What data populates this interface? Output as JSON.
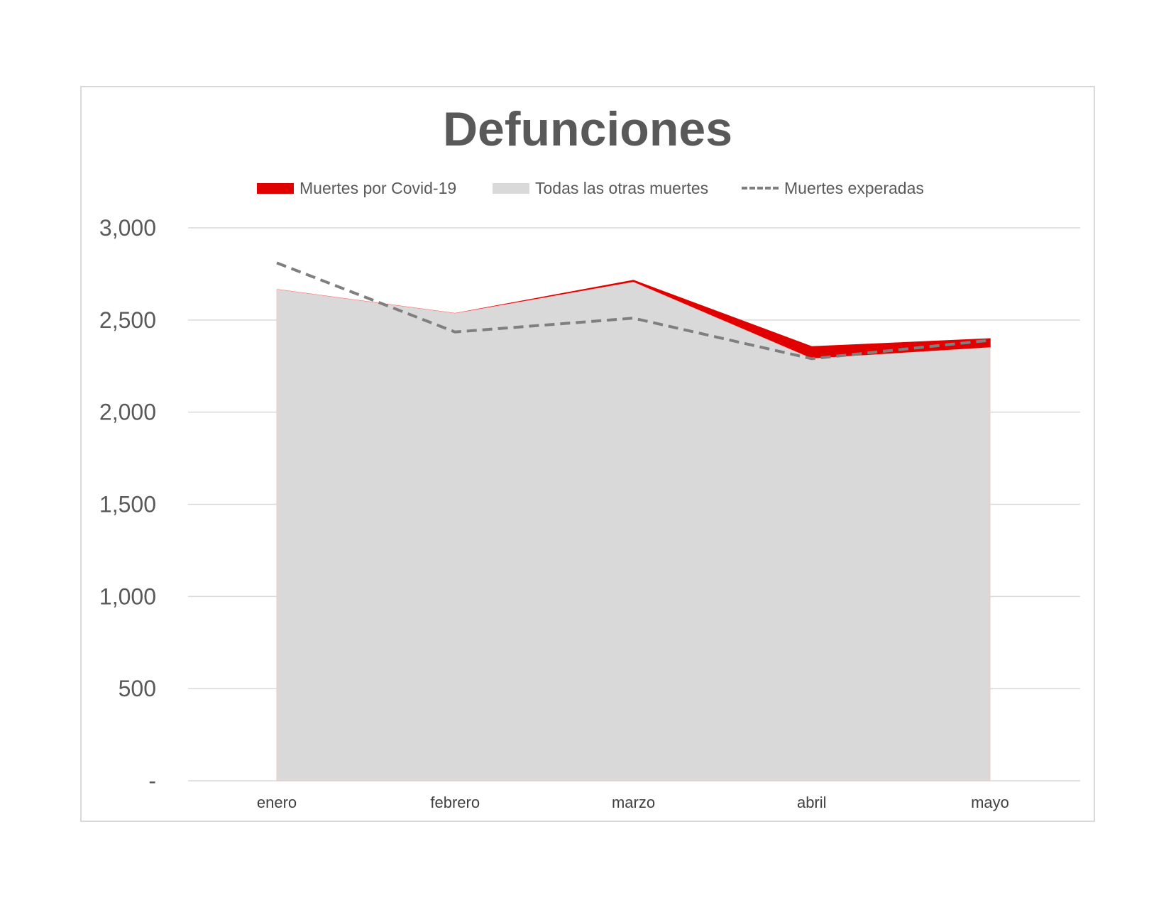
{
  "chart_data": {
    "type": "area",
    "title": "Defunciones",
    "categories": [
      "enero",
      "febrero",
      "marzo",
      "abril",
      "mayo"
    ],
    "series": [
      {
        "name": "Todas las otras muertes",
        "kind": "stacked-area",
        "color": "#d9d9d9",
        "values": [
          2665,
          2535,
          2705,
          2290,
          2350
        ]
      },
      {
        "name": "Muertes por Covid-19",
        "kind": "stacked-area",
        "color": "#e00000",
        "values": [
          0,
          0,
          10,
          65,
          48
        ]
      },
      {
        "name": "Muertes experadas",
        "kind": "dashed-line",
        "color": "#7f7f7f",
        "values": [
          2810,
          2435,
          2510,
          2290,
          2390
        ]
      }
    ],
    "ylim": [
      0,
      3000
    ],
    "yticks": [
      0,
      500,
      1000,
      1500,
      2000,
      2500,
      3000
    ],
    "ytick_labels": [
      "-",
      "500",
      "1,000",
      "1,500",
      "2,000",
      "2,500",
      "3,000"
    ],
    "grid": true,
    "legend_position": "top"
  },
  "legend": {
    "covid": "Muertes por Covid-19",
    "other": "Todas las otras muertes",
    "expected": "Muertes experadas"
  }
}
